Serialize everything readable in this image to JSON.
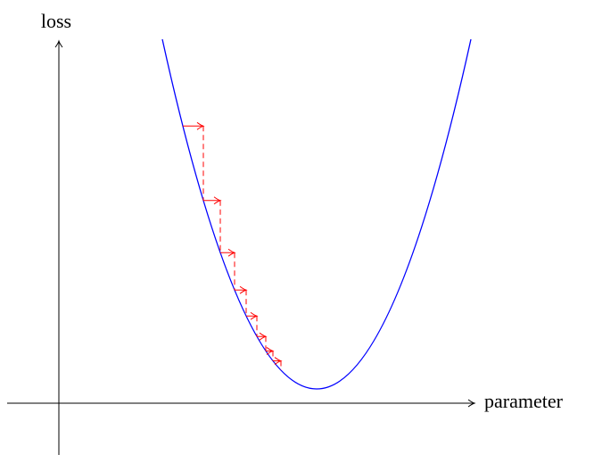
{
  "axes": {
    "y_label": "loss",
    "x_label": "parameter"
  }
}
